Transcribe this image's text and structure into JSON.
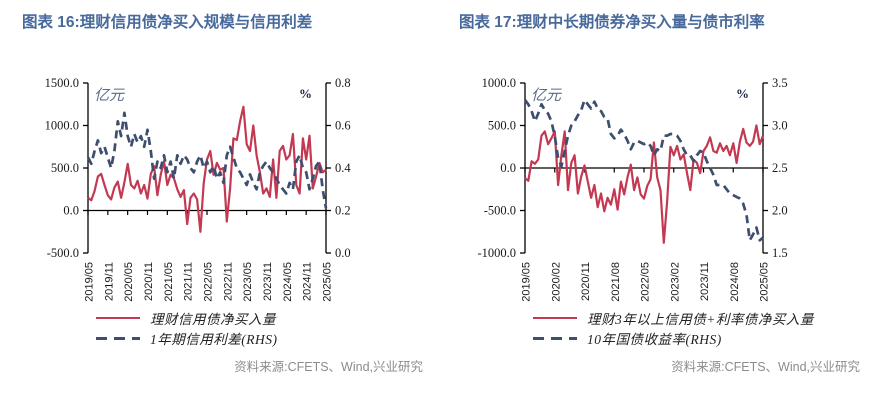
{
  "colors": {
    "title": "#47699b",
    "red_line": "#c43952",
    "blue_dash": "#3d4e6e",
    "axis": "#000000",
    "unit_label": "#5a6b8c",
    "pct_label": "#16243f",
    "tick_text": "#1a1a1a",
    "source_text": "#8c8c8c"
  },
  "figures": [
    {
      "title": "图表 16:理财信用债净买入规模与信用利差",
      "source": "资料来源:CFETS、Wind,兴业研究"
    },
    {
      "title": "图表 17:理财中长期债券净买入量与债市利率",
      "source": "资料来源:CFETS、Wind,兴业研究"
    }
  ],
  "chart_data": [
    {
      "type": "line",
      "x_start": "2019/05",
      "x_end": "2025/05",
      "x_frequency": "monthly",
      "n_points": 73,
      "x_tick_labels": [
        "2019/05",
        "2019/11",
        "2020/05",
        "2020/11",
        "2021/05",
        "2021/11",
        "2022/05",
        "2022/11",
        "2023/05",
        "2023/11",
        "2024/05",
        "2024/11",
        "2025/05"
      ],
      "x_tick_every": 6,
      "left_axis": {
        "label": "亿元",
        "min": -500,
        "max": 1500,
        "ticks": [
          1500,
          1000,
          500,
          0,
          -500
        ],
        "tick_labels": [
          "1500.0",
          "1000.0",
          "500.0",
          "0.0",
          "-500.0"
        ]
      },
      "right_axis": {
        "label": "%",
        "min": 0.0,
        "max": 0.8,
        "ticks": [
          0.8,
          0.6,
          0.4,
          0.2,
          0.0
        ],
        "tick_labels": [
          "0.8",
          "0.6",
          "0.4",
          "0.2",
          "0.0"
        ]
      },
      "grid": false,
      "legend_position": "bottom-left",
      "series": [
        {
          "name": "理财信用债净买入量",
          "axis": "left",
          "style": "solid",
          "color": "#c43952",
          "values": [
            150,
            120,
            230,
            400,
            430,
            300,
            180,
            130,
            270,
            340,
            150,
            330,
            550,
            300,
            260,
            350,
            200,
            300,
            140,
            430,
            520,
            180,
            420,
            580,
            300,
            420,
            380,
            250,
            160,
            240,
            -160,
            150,
            200,
            130,
            -250,
            320,
            600,
            700,
            420,
            560,
            480,
            500,
            -130,
            260,
            850,
            830,
            1050,
            1220,
            780,
            700,
            1000,
            650,
            450,
            200,
            260,
            160,
            600,
            150,
            700,
            760,
            600,
            650,
            900,
            300,
            200,
            850,
            600,
            880,
            260,
            400,
            560,
            450,
            480
          ]
        },
        {
          "name": "1年期信用利差(RHS)",
          "axis": "right",
          "style": "dashed",
          "color": "#3d4e6e",
          "values": [
            0.45,
            0.42,
            0.48,
            0.53,
            0.47,
            0.5,
            0.45,
            0.4,
            0.48,
            0.62,
            0.55,
            0.66,
            0.55,
            0.5,
            0.56,
            0.52,
            0.55,
            0.5,
            0.58,
            0.48,
            0.35,
            0.43,
            0.4,
            0.46,
            0.38,
            0.43,
            0.35,
            0.46,
            0.42,
            0.46,
            0.44,
            0.4,
            0.38,
            0.43,
            0.46,
            0.4,
            0.43,
            0.38,
            0.41,
            0.35,
            0.38,
            0.33,
            0.46,
            0.5,
            0.45,
            0.4,
            0.38,
            0.35,
            0.32,
            0.37,
            0.33,
            0.3,
            0.38,
            0.41,
            0.43,
            0.4,
            0.38,
            0.35,
            0.32,
            0.3,
            0.28,
            0.33,
            0.3,
            0.43,
            0.46,
            0.4,
            0.38,
            0.3,
            0.35,
            0.41,
            0.43,
            0.3,
            0.21
          ]
        }
      ]
    },
    {
      "type": "line",
      "x_start": "2019/05",
      "x_end": "2025/05",
      "x_frequency": "monthly",
      "n_points": 73,
      "x_tick_labels": [
        "2019/05",
        "2020/02",
        "2020/11",
        "2021/08",
        "2022/05",
        "2023/02",
        "2023/11",
        "2024/08",
        "2025/05"
      ],
      "x_tick_every": 9,
      "left_axis": {
        "label": "亿元",
        "min": -1000,
        "max": 1000,
        "ticks": [
          1000,
          500,
          0,
          -500,
          -1000
        ],
        "tick_labels": [
          "1000.0",
          "500.0",
          "0.0",
          "-500.0",
          "-1000.0"
        ]
      },
      "right_axis": {
        "label": "%",
        "min": 1.5,
        "max": 3.5,
        "ticks": [
          3.5,
          3.0,
          2.5,
          2.0,
          1.5
        ],
        "tick_labels": [
          "3.5",
          "3.0",
          "2.5",
          "2.0",
          "1.5"
        ]
      },
      "grid": false,
      "legend_position": "bottom-left",
      "series": [
        {
          "name": "理财3年以上信用债+利率债净买入量",
          "axis": "left",
          "style": "solid",
          "color": "#c43952",
          "values": [
            -120,
            -150,
            80,
            50,
            100,
            380,
            430,
            280,
            350,
            430,
            -200,
            150,
            430,
            -260,
            60,
            150,
            -300,
            -100,
            30,
            -160,
            -350,
            -200,
            -460,
            -300,
            -510,
            -350,
            -430,
            -250,
            -490,
            -160,
            -310,
            -110,
            40,
            -260,
            -110,
            -310,
            -360,
            -210,
            -130,
            300,
            -110,
            -260,
            -880,
            -400,
            250,
            150,
            260,
            100,
            160,
            -60,
            -260,
            100,
            60,
            -60,
            200,
            260,
            360,
            200,
            180,
            290,
            200,
            260,
            150,
            290,
            60,
            310,
            460,
            300,
            260,
            310,
            500,
            280,
            380
          ]
        },
        {
          "name": "10年国债收益率(RHS)",
          "axis": "right",
          "style": "dashed",
          "color": "#3d4e6e",
          "values": [
            3.3,
            3.25,
            3.17,
            3.05,
            3.14,
            3.25,
            3.18,
            3.14,
            3.05,
            2.87,
            2.62,
            2.52,
            2.7,
            2.88,
            3.0,
            3.05,
            3.12,
            3.18,
            3.3,
            3.25,
            3.2,
            3.28,
            3.2,
            3.17,
            3.1,
            3.08,
            2.9,
            2.85,
            2.88,
            2.95,
            2.9,
            2.82,
            2.72,
            2.8,
            2.82,
            2.8,
            2.78,
            2.8,
            2.76,
            2.65,
            2.72,
            2.7,
            2.88,
            2.88,
            2.9,
            2.9,
            2.88,
            2.82,
            2.72,
            2.65,
            2.65,
            2.58,
            2.65,
            2.7,
            2.68,
            2.58,
            2.5,
            2.42,
            2.3,
            2.3,
            2.3,
            2.25,
            2.2,
            2.18,
            2.16,
            2.14,
            2.08,
            1.95,
            1.65,
            1.72,
            1.8,
            1.65,
            1.68
          ]
        }
      ]
    }
  ]
}
